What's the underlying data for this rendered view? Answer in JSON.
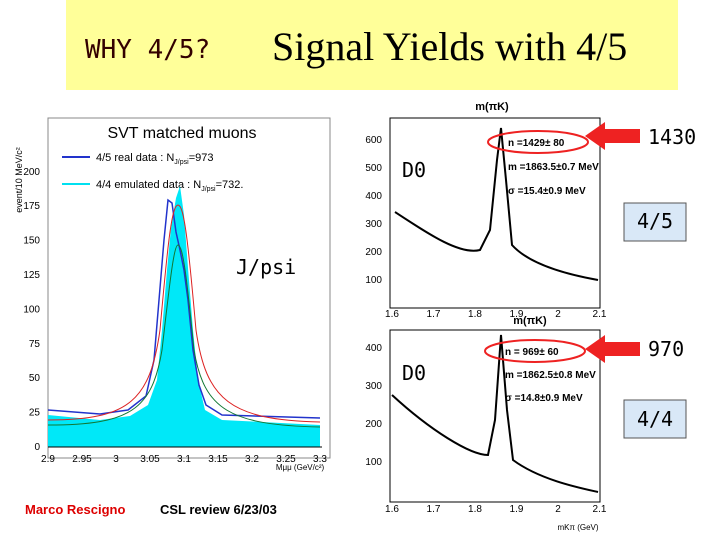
{
  "title": {
    "prefix": "WHY 4/5?",
    "main": "Signal Yields with 4/5"
  },
  "left_plot": {
    "title": "SVT matched muons",
    "y_label": "event/10 MeV/c²",
    "x_label": "Mμμ (GeV/c²)",
    "legend": [
      {
        "prefix": "4/5 real data : N",
        "sub": "J/psi",
        "suffix": "=973"
      },
      {
        "prefix": "4/4 emulated data : N",
        "sub": "J/psi",
        "suffix": "=732."
      }
    ],
    "yticks": [
      "0",
      "25",
      "50",
      "75",
      "100",
      "125",
      "150",
      "175",
      "200"
    ],
    "xticks": [
      "2.9",
      "2.95",
      "3",
      "3.05",
      "3.1",
      "3.15",
      "3.2",
      "3.25",
      "3.3"
    ]
  },
  "top_plot": {
    "title": "m(πK)",
    "x_label": "m(πK)",
    "stats": [
      "n =1429± 80",
      "m =1863.5±0.7 MeV",
      "σ =15.4±0.9 MeV"
    ],
    "yticks": [
      "100",
      "200",
      "300",
      "400",
      "500",
      "600"
    ],
    "xticks": [
      "1.6",
      "1.7",
      "1.8",
      "1.9",
      "2",
      "2.1"
    ]
  },
  "bottom_plot": {
    "x_label": "mKπ (GeV)",
    "stats": [
      "n = 969± 60",
      "m =1862.5±0.8 MeV",
      "σ =14.8±0.9 MeV"
    ],
    "yticks": [
      "100",
      "200",
      "300",
      "400"
    ],
    "xticks": [
      "1.6",
      "1.7",
      "1.8",
      "1.9",
      "2",
      "2.1"
    ]
  },
  "annotations": {
    "top_count": "1430",
    "bottom_count": "970",
    "top_d0": "D0",
    "bottom_d0": "D0",
    "jpsi": "J/psi",
    "top_box": "4/5",
    "bottom_box": "4/4"
  },
  "footer": {
    "author": "Marco Rescigno",
    "event": "CSL review 6/23/03"
  }
}
